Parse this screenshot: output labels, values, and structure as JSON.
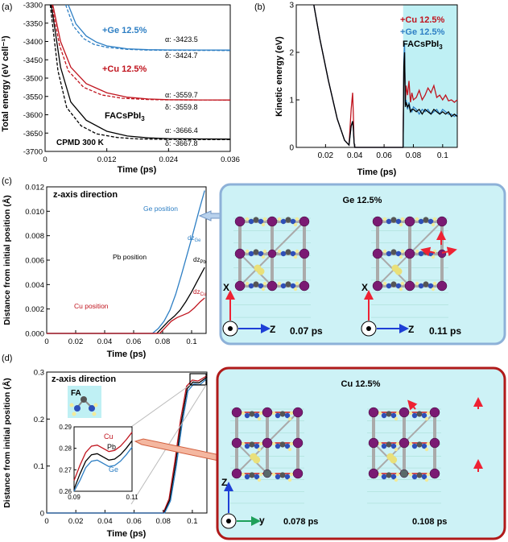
{
  "panel_a": {
    "label": "(a)",
    "note": "CPMD 300 K",
    "ylabel": "Total energy (eV cell⁻¹)",
    "xlabel": "Time (ps)",
    "series_labels": {
      "ge": "+Ge 12.5%",
      "cu": "+Cu 12.5%",
      "facs": "FACsPbI",
      "facs_sub": "3"
    },
    "final_values": {
      "ge_alpha": "α: -3423.5",
      "ge_delta": "δ: -3424.7",
      "cu_alpha": "α: -3559.7",
      "cu_delta": "δ: -3559.8",
      "facs_alpha": "α: -3666.4",
      "facs_delta": "δ: -3667.8"
    }
  },
  "panel_b": {
    "label": "(b)",
    "ylabel": "Kinetic energy (eV)",
    "xlabel": "Time (ps)",
    "legend": {
      "cu": "+Cu 12.5%",
      "ge": "+Ge 12.5%",
      "facs": "FACsPbI",
      "facs_sub": "3"
    }
  },
  "panel_c": {
    "label": "(c)",
    "title": "z-axis direction",
    "ylabel": "Distance from initial position (Å)",
    "xlabel": "Time (ps)",
    "annotations": {
      "ge_pos": "Ge position",
      "pb_pos": "Pb position",
      "cu_pos": "Cu position"
    },
    "dz": {
      "ge_main": "dz",
      "ge_sub": "Ge",
      "pb_main": "dz",
      "pb_sub": "Pb",
      "cu_main": "dz",
      "cu_sub": "Cu"
    },
    "box_title": "Ge 12.5%",
    "snap1_time": "0.07 ps",
    "snap2_time": "0.11 ps",
    "axis_x": "X",
    "axis_z": "Z"
  },
  "panel_d": {
    "label": "(d)",
    "title": "z-axis direction",
    "ylabel": "Distance from initial position (Å)",
    "xlabel": "Time (ps)",
    "fa_label": "FA",
    "inset": {
      "cu": "Cu",
      "pb": "Pb",
      "ge": "Ge"
    },
    "box_title": "Cu 12.5%",
    "snap1_time": "0.078 ps",
    "snap2_time": "0.108 ps",
    "axis_z": "Z",
    "axis_y": "y"
  },
  "colors": {
    "ge": "#2e7fc4",
    "cu": "#c0141e",
    "facs": "#000000",
    "pb": "#7a1a73",
    "iodine": "#e9e07a",
    "c_atom": "#555555",
    "n_atom": "#2e4fb8",
    "box_c_fill": "#cdf2f6",
    "box_c_border": "#8db1d8",
    "box_d_fill": "#cdf2f6",
    "box_d_border": "#b01a1a",
    "kinetic_bg": "#bff0f4"
  },
  "chart_data": [
    {
      "id": "a",
      "type": "line",
      "title": "",
      "xlabel": "Time (ps)",
      "ylabel": "Total energy (eV cell-1)",
      "xlim": [
        0,
        0.036
      ],
      "ylim": [
        -3700,
        -3300
      ],
      "xticks": [
        0,
        0.012,
        0.024,
        0.036
      ],
      "xtick_labels": [
        "0",
        "0.012",
        "0.024",
        "0.036"
      ],
      "yticks": [
        -3700,
        -3650,
        -3600,
        -3550,
        -3500,
        -3450,
        -3400,
        -3350,
        -3300
      ],
      "ytick_labels": [
        "-3700",
        "-3650",
        "-3600",
        "-3550",
        "-3500",
        "-3450",
        "-3400",
        "-3350",
        "-3300"
      ],
      "series": [
        {
          "name": "+Ge 12.5% α",
          "style": "solid",
          "color": "#2e7fc4",
          "x": [
            0.0045,
            0.006,
            0.008,
            0.01,
            0.012,
            0.016,
            0.02,
            0.024,
            0.03,
            0.036
          ],
          "values": [
            -3300,
            -3352,
            -3385,
            -3402,
            -3412,
            -3420,
            -3422.5,
            -3423,
            -3423.3,
            -3423.5
          ]
        },
        {
          "name": "+Ge 12.5% δ",
          "style": "dashed",
          "color": "#2e7fc4",
          "x": [
            0.004,
            0.0055,
            0.0075,
            0.0095,
            0.012,
            0.016,
            0.02,
            0.024,
            0.03,
            0.036
          ],
          "values": [
            -3300,
            -3358,
            -3392,
            -3408,
            -3416,
            -3421.5,
            -3423.5,
            -3424,
            -3424.5,
            -3424.7
          ]
        },
        {
          "name": "+Cu 12.5% α",
          "style": "solid",
          "color": "#c0141e",
          "x": [
            0.0015,
            0.003,
            0.005,
            0.008,
            0.012,
            0.016,
            0.02,
            0.024,
            0.03,
            0.036
          ],
          "values": [
            -3300,
            -3400,
            -3470,
            -3515,
            -3540,
            -3552,
            -3557,
            -3559,
            -3559.5,
            -3559.7
          ]
        },
        {
          "name": "+Cu 12.5% δ",
          "style": "dashed",
          "color": "#c0141e",
          "x": [
            0.0013,
            0.0028,
            0.0045,
            0.0075,
            0.011,
            0.015,
            0.02,
            0.024,
            0.03,
            0.036
          ],
          "values": [
            -3300,
            -3410,
            -3480,
            -3525,
            -3546,
            -3555,
            -3558.5,
            -3559.3,
            -3559.6,
            -3559.8
          ]
        },
        {
          "name": "FACsPbI3 α",
          "style": "solid",
          "color": "#000000",
          "x": [
            0.0012,
            0.003,
            0.005,
            0.008,
            0.012,
            0.016,
            0.02,
            0.024,
            0.03,
            0.036
          ],
          "values": [
            -3300,
            -3470,
            -3565,
            -3615,
            -3645,
            -3658,
            -3663,
            -3665,
            -3666,
            -3666.4
          ]
        },
        {
          "name": "FACsPbI3 δ",
          "style": "dashed",
          "color": "#000000",
          "x": [
            0.001,
            0.0025,
            0.0042,
            0.007,
            0.01,
            0.014,
            0.018,
            0.024,
            0.03,
            0.036
          ],
          "values": [
            -3300,
            -3480,
            -3580,
            -3630,
            -3652,
            -3662,
            -3666,
            -3667.3,
            -3667.6,
            -3667.8
          ]
        }
      ]
    },
    {
      "id": "b",
      "type": "line",
      "title": "",
      "xlabel": "Time (ps)",
      "ylabel": "Kinetic energy (eV)",
      "xlim": [
        0,
        0.11
      ],
      "ylim": [
        0,
        3
      ],
      "xticks": [
        0.02,
        0.04,
        0.06,
        0.08,
        0.1
      ],
      "xtick_labels": [
        "0.02",
        "0.04",
        "0.06",
        "0.08",
        "0.1"
      ],
      "yticks": [
        0,
        1,
        2,
        3
      ],
      "ytick_labels": [
        "0",
        "1",
        "2",
        "3"
      ],
      "highlight_x_range": [
        0.073,
        0.11
      ],
      "series": [
        {
          "name": "+Cu 12.5%",
          "color": "#c0141e",
          "x": [
            0.012,
            0.016,
            0.022,
            0.028,
            0.033,
            0.036,
            0.0375,
            0.0385,
            0.039,
            0.0395,
            0.04,
            0.073,
            0.0735,
            0.074,
            0.0745,
            0.075,
            0.076,
            0.077,
            0.078,
            0.079,
            0.08,
            0.082,
            0.084,
            0.086,
            0.088,
            0.09,
            0.092,
            0.094,
            0.096,
            0.098,
            0.1,
            0.102,
            0.104,
            0.106,
            0.108,
            0.11
          ],
          "values": [
            3,
            2.3,
            1.4,
            0.6,
            0.15,
            0.05,
            0.8,
            1.15,
            0.7,
            0.1,
            0.0,
            0.0,
            1.6,
            2.0,
            0.9,
            1.3,
            1.1,
            1.4,
            0.95,
            1.15,
            1.0,
            1.05,
            1.2,
            1.0,
            1.1,
            1.25,
            1.15,
            1.3,
            1.05,
            1.1,
            1.0,
            1.1,
            0.98,
            1.0,
            0.95,
            1.0
          ]
        },
        {
          "name": "+Ge 12.5%",
          "color": "#2e7fc4",
          "x": [
            0.012,
            0.016,
            0.022,
            0.028,
            0.033,
            0.036,
            0.0375,
            0.0385,
            0.039,
            0.0395,
            0.04,
            0.073,
            0.0735,
            0.074,
            0.0745,
            0.075,
            0.076,
            0.077,
            0.078,
            0.079,
            0.08,
            0.082,
            0.084,
            0.086,
            0.088,
            0.09,
            0.092,
            0.094,
            0.096,
            0.098,
            0.1,
            0.102,
            0.104,
            0.106,
            0.108,
            0.11
          ],
          "values": [
            3,
            2.3,
            1.4,
            0.6,
            0.15,
            0.05,
            0.45,
            0.55,
            0.4,
            0.1,
            0.0,
            0.0,
            1.8,
            2.2,
            0.9,
            1.0,
            0.8,
            0.95,
            0.8,
            0.75,
            0.85,
            0.8,
            0.7,
            0.8,
            0.75,
            0.8,
            0.7,
            0.75,
            0.8,
            0.7,
            0.8,
            0.75,
            0.7,
            0.7,
            0.65,
            0.7
          ]
        },
        {
          "name": "FACsPbI3",
          "color": "#000000",
          "x": [
            0.012,
            0.016,
            0.022,
            0.028,
            0.033,
            0.036,
            0.0375,
            0.0385,
            0.039,
            0.0395,
            0.04,
            0.073,
            0.0735,
            0.074,
            0.0745,
            0.075,
            0.076,
            0.077,
            0.078,
            0.079,
            0.08,
            0.082,
            0.084,
            0.086,
            0.088,
            0.09,
            0.092,
            0.094,
            0.096,
            0.098,
            0.1,
            0.102,
            0.104,
            0.106,
            0.108,
            0.11
          ],
          "values": [
            3,
            2.3,
            1.4,
            0.6,
            0.15,
            0.05,
            0.45,
            0.55,
            0.4,
            0.1,
            0.0,
            0.0,
            1.7,
            2.0,
            0.85,
            0.95,
            0.85,
            0.9,
            0.75,
            0.8,
            0.8,
            0.75,
            0.8,
            0.7,
            0.8,
            0.75,
            0.7,
            0.8,
            0.75,
            0.7,
            0.75,
            0.7,
            0.75,
            0.65,
            0.7,
            0.65
          ]
        }
      ]
    },
    {
      "id": "c",
      "type": "line",
      "title": "z-axis direction",
      "xlabel": "Time (ps)",
      "ylabel": "Distance from initial position (Å)",
      "xlim": [
        0,
        0.11
      ],
      "ylim": [
        0,
        0.012
      ],
      "xticks": [
        0,
        0.02,
        0.04,
        0.06,
        0.08,
        0.1
      ],
      "xtick_labels": [
        "0",
        "0.02",
        "0.04",
        "0.06",
        "0.08",
        "0.1"
      ],
      "yticks": [
        0,
        0.002,
        0.004,
        0.006,
        0.008,
        0.01,
        0.012
      ],
      "ytick_labels": [
        "0.000",
        "0.002",
        "0.004",
        "0.006",
        "0.008",
        "0.010",
        "0.012"
      ],
      "series": [
        {
          "name": "dzGe",
          "color": "#2e7fc4",
          "x": [
            0,
            0.073,
            0.077,
            0.081,
            0.085,
            0.089,
            0.093,
            0.097,
            0.101,
            0.105,
            0.109
          ],
          "values": [
            0,
            0,
            0.0004,
            0.001,
            0.0019,
            0.0032,
            0.0048,
            0.0065,
            0.0082,
            0.01,
            0.0117
          ]
        },
        {
          "name": "dzPb",
          "color": "#000000",
          "x": [
            0,
            0.076,
            0.08,
            0.084,
            0.088,
            0.092,
            0.096,
            0.1,
            0.104,
            0.109
          ],
          "values": [
            0,
            0,
            0.0005,
            0.001,
            0.0014,
            0.0019,
            0.0026,
            0.0034,
            0.0043,
            0.0054
          ]
        },
        {
          "name": "dzCu",
          "color": "#c0141e",
          "x": [
            0,
            0.078,
            0.082,
            0.086,
            0.09,
            0.094,
            0.098,
            0.102,
            0.106,
            0.109
          ],
          "values": [
            0,
            0,
            0.0005,
            0.001,
            0.0013,
            0.0015,
            0.0017,
            0.0021,
            0.0026,
            0.0029
          ]
        }
      ]
    },
    {
      "id": "d",
      "type": "line",
      "title": "z-axis direction",
      "xlabel": "Time (ps)",
      "ylabel": "Distance from initial position (Å)",
      "xlim": [
        0,
        0.11
      ],
      "ylim": [
        0,
        0.3
      ],
      "xticks": [
        0,
        0.02,
        0.04,
        0.06,
        0.08,
        0.1
      ],
      "xtick_labels": [
        "0",
        "0.02",
        "0.04",
        "0.06",
        "0.08",
        "0.1"
      ],
      "yticks": [
        0,
        0.1,
        0.2,
        0.3
      ],
      "ytick_labels": [
        "0",
        "0.1",
        "0.2",
        "0.3"
      ],
      "series": [
        {
          "name": "Cu",
          "color": "#c0141e",
          "x": [
            0,
            0.08,
            0.084,
            0.088,
            0.092,
            0.096,
            0.1,
            0.104,
            0.11
          ],
          "values": [
            0,
            0,
            0.03,
            0.11,
            0.2,
            0.27,
            0.283,
            0.281,
            0.292
          ]
        },
        {
          "name": "Pb",
          "color": "#000000",
          "x": [
            0,
            0.0805,
            0.0845,
            0.0885,
            0.0925,
            0.0965,
            0.1005,
            0.1045,
            0.11
          ],
          "values": [
            0,
            0,
            0.028,
            0.105,
            0.195,
            0.265,
            0.279,
            0.277,
            0.289
          ]
        },
        {
          "name": "Ge",
          "color": "#2e7fc4",
          "x": [
            0,
            0.081,
            0.085,
            0.089,
            0.093,
            0.097,
            0.101,
            0.105,
            0.11
          ],
          "values": [
            0,
            0,
            0.026,
            0.1,
            0.19,
            0.26,
            0.275,
            0.273,
            0.286
          ]
        }
      ],
      "inset": {
        "xlim": [
          0.09,
          0.11
        ],
        "ylim": [
          0.26,
          0.29
        ],
        "xtick_labels": [
          "0.09",
          "0.11"
        ],
        "ytick_labels": [
          "0.26",
          "0.27",
          "0.28",
          "0.29"
        ],
        "labels": [
          "Cu",
          "Pb",
          "Ge"
        ]
      }
    }
  ]
}
